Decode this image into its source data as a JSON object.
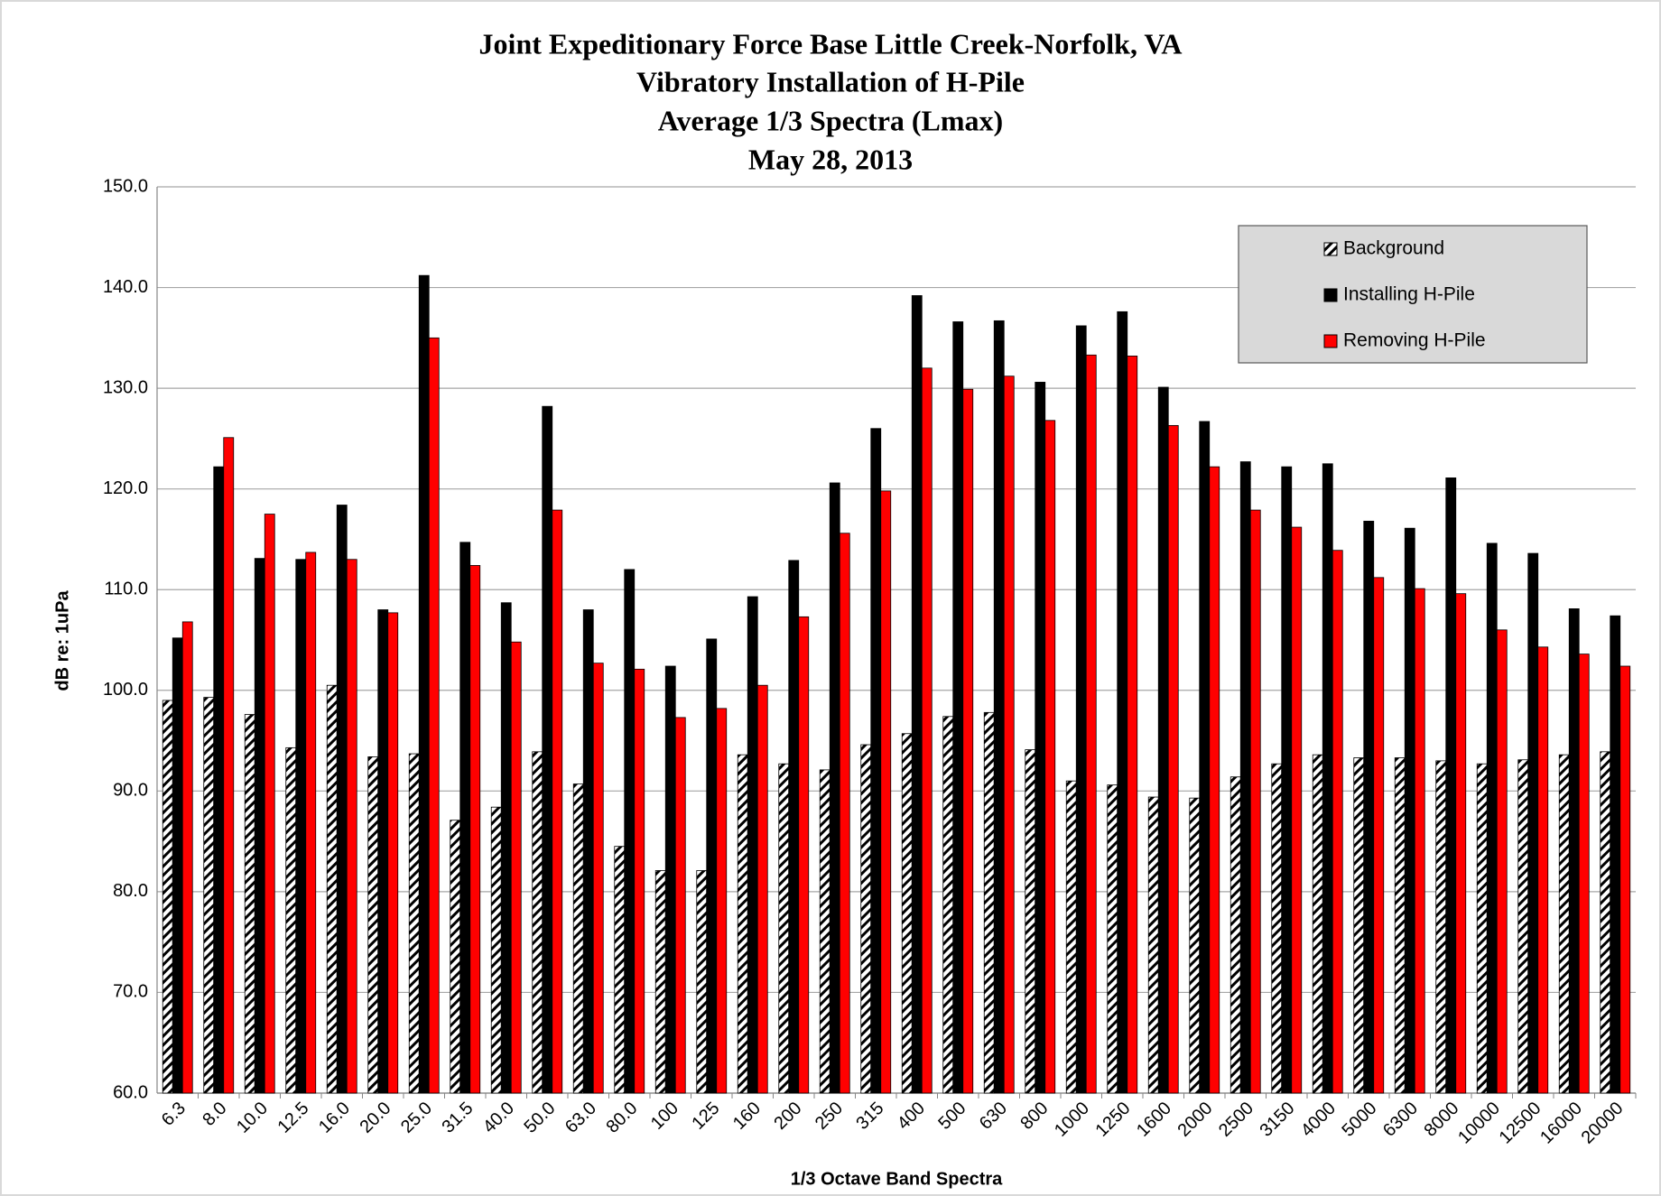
{
  "chart_data": {
    "type": "bar",
    "title": [
      "Joint Expeditionary  Force Base  Little  Creek-Norfolk, VA",
      "Vibratory  Installation  of H-Pile",
      "Average 1/3 Spectra (Lmax)",
      "May 28, 2013"
    ],
    "x_label": "1/3 Octave Band  Spectra",
    "y_label": "dB re: 1uPa",
    "categories": [
      "6.3",
      "8.0",
      "10.0",
      "12.5",
      "16.0",
      "20.0",
      "25.0",
      "31.5",
      "40.0",
      "50.0",
      "63.0",
      "80.0",
      "100",
      "125",
      "160",
      "200",
      "250",
      "315",
      "400",
      "500",
      "630",
      "800",
      "1000",
      "1250",
      "1600",
      "2000",
      "2500",
      "3150",
      "4000",
      "5000",
      "6300",
      "8000",
      "10000",
      "12500",
      "16000",
      "20000"
    ],
    "series": [
      {
        "name": "Background",
        "color": "#000000",
        "pattern": "hatch",
        "values": [
          99.0,
          99.3,
          97.6,
          94.3,
          100.5,
          93.4,
          93.7,
          87.1,
          88.4,
          93.9,
          90.7,
          84.5,
          82.1,
          82.1,
          93.6,
          92.7,
          92.1,
          94.6,
          95.7,
          97.4,
          97.8,
          94.1,
          91.0,
          90.6,
          89.4,
          89.3,
          91.4,
          92.7,
          93.6,
          93.3,
          93.3,
          93.0,
          92.7,
          93.1,
          93.6,
          93.9
        ]
      },
      {
        "name": "Installing H-Pile",
        "color": "#000000",
        "values": [
          105.2,
          122.2,
          113.1,
          113.0,
          118.4,
          108.0,
          141.2,
          114.7,
          108.7,
          128.2,
          108.0,
          112.0,
          102.4,
          105.1,
          109.3,
          112.9,
          120.6,
          126.0,
          139.2,
          136.6,
          136.7,
          130.6,
          136.2,
          137.6,
          130.1,
          126.7,
          122.7,
          122.2,
          122.5,
          116.8,
          116.1,
          121.1,
          114.6,
          113.6,
          108.1,
          107.4
        ]
      },
      {
        "name": "Removing H-Pile",
        "color": "#ff0000",
        "values": [
          106.8,
          125.1,
          117.5,
          113.7,
          113.0,
          107.7,
          135.0,
          112.4,
          104.8,
          117.9,
          102.7,
          102.1,
          97.3,
          98.2,
          100.5,
          107.3,
          115.6,
          119.8,
          132.0,
          129.9,
          131.2,
          126.8,
          133.3,
          133.2,
          126.3,
          122.2,
          117.9,
          116.2,
          113.9,
          111.2,
          110.1,
          109.6,
          106.0,
          104.3,
          103.6,
          102.4
        ]
      }
    ],
    "ylim": [
      60,
      150
    ],
    "yticks": [
      {
        "value": 60,
        "label": "60.0"
      },
      {
        "value": 70,
        "label": "70.0"
      },
      {
        "value": 80,
        "label": "80.0"
      },
      {
        "value": 90,
        "label": "90.0"
      },
      {
        "value": 100,
        "label": "100.0"
      },
      {
        "value": 110,
        "label": "110.0"
      },
      {
        "value": 120,
        "label": "120.0"
      },
      {
        "value": 130,
        "label": "130.0"
      },
      {
        "value": 140,
        "label": "140.0"
      },
      {
        "value": 150,
        "label": "150.0"
      }
    ],
    "grid": true,
    "legend": "upper right"
  }
}
